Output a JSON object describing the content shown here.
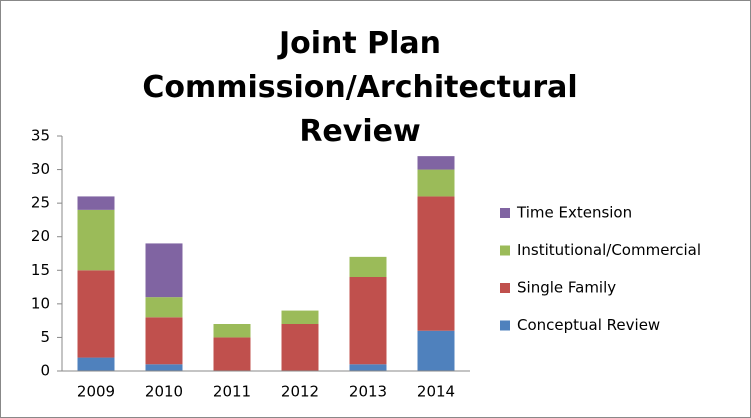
{
  "chart_data": {
    "type": "stacked_bar",
    "title": "Joint Plan Commission/Architectural Review",
    "categories": [
      "2009",
      "2010",
      "2011",
      "2012",
      "2013",
      "2014"
    ],
    "series": [
      {
        "name": "Conceptual Review",
        "color": "#4f81bd",
        "values": [
          2,
          1,
          0,
          0,
          1,
          6
        ]
      },
      {
        "name": "Single Family",
        "color": "#c0504d",
        "values": [
          13,
          7,
          5,
          7,
          13,
          20
        ]
      },
      {
        "name": "Institutional/Commercial",
        "color": "#9bbb59",
        "values": [
          9,
          3,
          2,
          2,
          3,
          4
        ]
      },
      {
        "name": "Time Extension",
        "color": "#8064a2",
        "values": [
          2,
          8,
          0,
          0,
          0,
          2
        ]
      }
    ],
    "ylim": [
      0,
      35
    ],
    "yticks": [
      0,
      5,
      10,
      15,
      20,
      25,
      30,
      35
    ],
    "grid": false,
    "legend": "right"
  }
}
